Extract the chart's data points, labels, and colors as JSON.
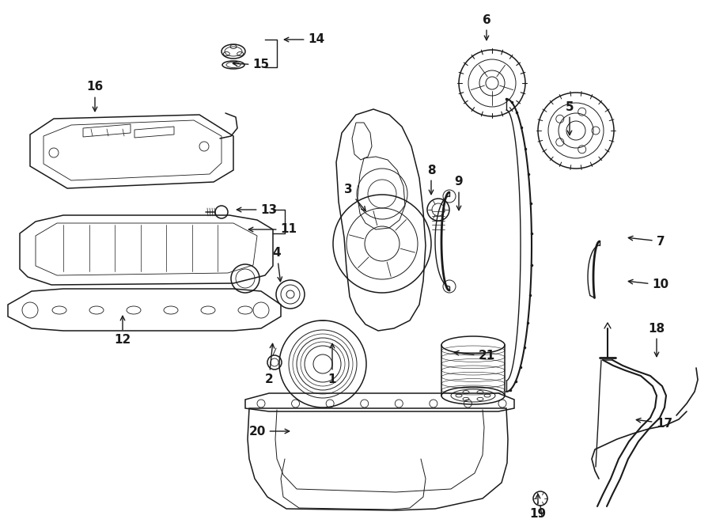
{
  "bg_color": "#ffffff",
  "line_color": "#1a1a1a",
  "fig_width": 9.0,
  "fig_height": 6.61,
  "dpi": 100,
  "labels": [
    [
      "1",
      420,
      430,
      420,
      480
    ],
    [
      "2",
      345,
      430,
      340,
      480
    ],
    [
      "3",
      465,
      270,
      440,
      240
    ],
    [
      "4",
      355,
      360,
      350,
      320
    ],
    [
      "5",
      720,
      175,
      720,
      135
    ],
    [
      "6",
      615,
      55,
      615,
      25
    ],
    [
      "7",
      790,
      300,
      835,
      305
    ],
    [
      "8",
      545,
      250,
      545,
      215
    ],
    [
      "9",
      580,
      270,
      580,
      230
    ],
    [
      "10",
      790,
      355,
      835,
      360
    ],
    [
      "11",
      310,
      290,
      365,
      290
    ],
    [
      "12",
      155,
      395,
      155,
      430
    ],
    [
      "13",
      295,
      265,
      340,
      265
    ],
    [
      "14",
      355,
      50,
      400,
      50
    ],
    [
      "15",
      290,
      80,
      330,
      82
    ],
    [
      "16",
      120,
      145,
      120,
      110
    ],
    [
      "17",
      800,
      530,
      840,
      535
    ],
    [
      "18",
      830,
      455,
      830,
      415
    ],
    [
      "19",
      680,
      620,
      680,
      650
    ],
    [
      "20",
      370,
      545,
      325,
      545
    ],
    [
      "21",
      570,
      445,
      615,
      450
    ]
  ]
}
